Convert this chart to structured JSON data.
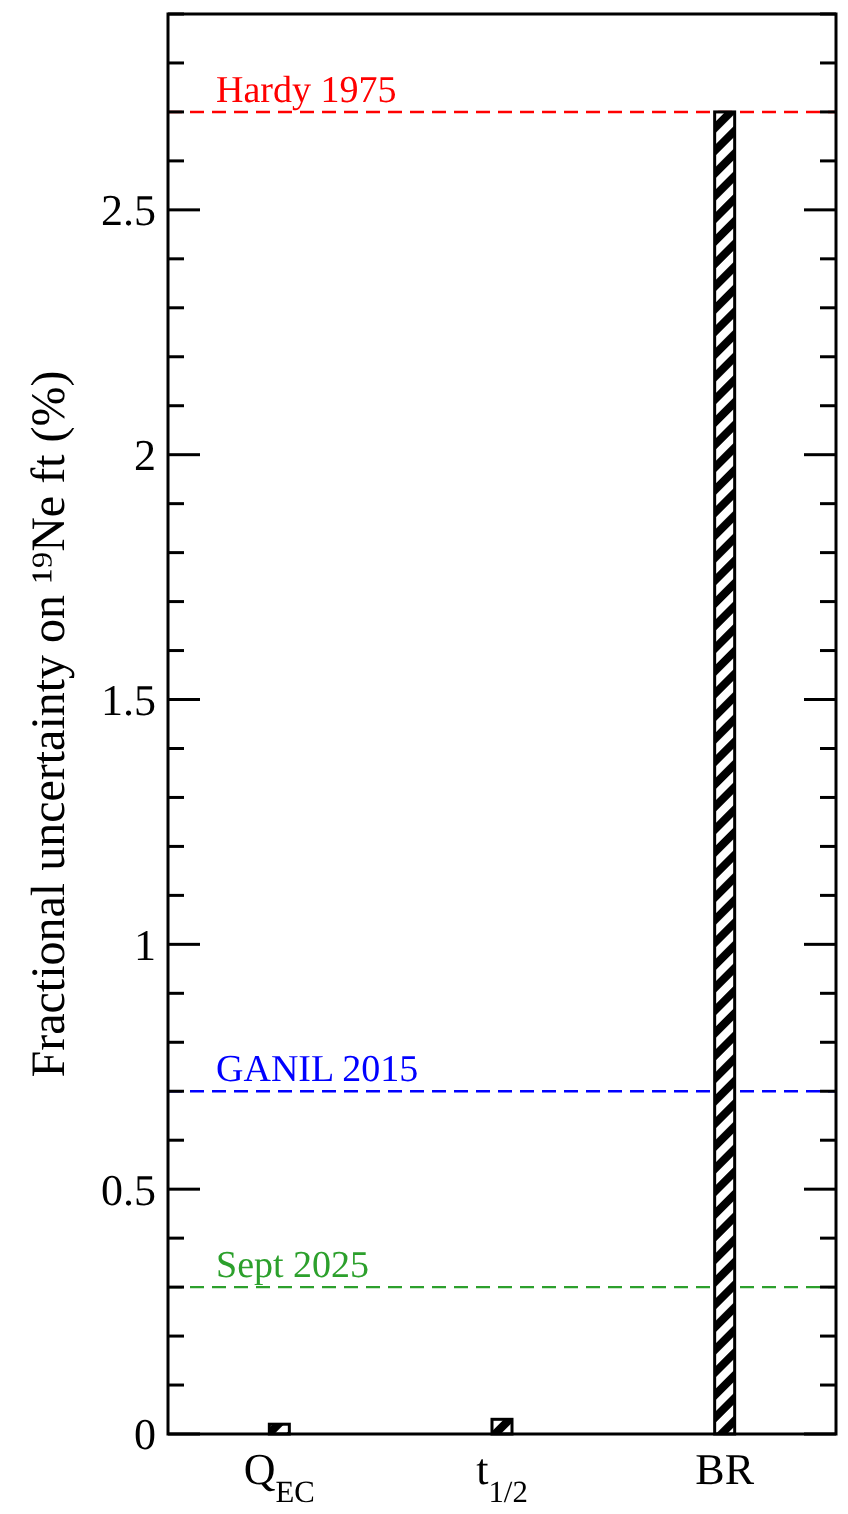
{
  "chart_data": {
    "type": "bar",
    "ylabel": "Fractional uncertainty on ¹⁹Ne ft (%)",
    "categories": [
      "Q$_{EC}$",
      "t$_{1/2}$",
      "BR"
    ],
    "values": [
      0.02,
      0.03,
      2.7
    ],
    "color": "#000000",
    "ylim": [
      0,
      2.9
    ],
    "yticks": [
      0,
      {
        "value": 0.1,
        "label": null
      },
      {
        "value": 0.2,
        "label": null
      },
      {
        "value": 0.3,
        "label": null
      },
      {
        "value": 0.4,
        "label": null
      },
      0.5,
      {
        "value": 0.6,
        "label": null
      },
      {
        "value": 0.7,
        "label": null
      },
      {
        "value": 0.8,
        "label": null
      },
      {
        "value": 0.9,
        "label": null
      },
      1,
      {
        "value": 1.1,
        "label": null
      },
      {
        "value": 1.2,
        "label": null
      },
      {
        "value": 1.3,
        "label": null
      },
      {
        "value": 1.4,
        "label": null
      },
      1.5,
      {
        "value": 1.6,
        "label": null
      },
      {
        "value": 1.7,
        "label": null
      },
      {
        "value": 1.8,
        "label": null
      },
      {
        "value": 1.9,
        "label": null
      },
      2,
      {
        "value": 2.1,
        "label": null
      },
      {
        "value": 2.2,
        "label": null
      },
      {
        "value": 2.3,
        "label": null
      },
      {
        "value": 2.4,
        "label": null
      },
      2.5,
      {
        "value": 2.6,
        "label": null
      },
      {
        "value": 2.7,
        "label": null
      },
      {
        "value": 2.8,
        "label": null
      },
      {
        "value": 2.9,
        "label": null
      }
    ],
    "ref_lines": [
      {
        "axis": "y",
        "value": 2.7,
        "label": "Hardy 1975",
        "color": "#ff0000",
        "line_style": "dashed"
      },
      {
        "axis": "y",
        "value": 0.7,
        "label": "GANIL 2015",
        "color": "#0000ff",
        "line_style": "dashed"
      },
      {
        "axis": "y",
        "value": 0.3,
        "label": "Sept 2025",
        "color": "#2ca02c",
        "line_style": "dashed"
      }
    ],
    "grid": false
  }
}
